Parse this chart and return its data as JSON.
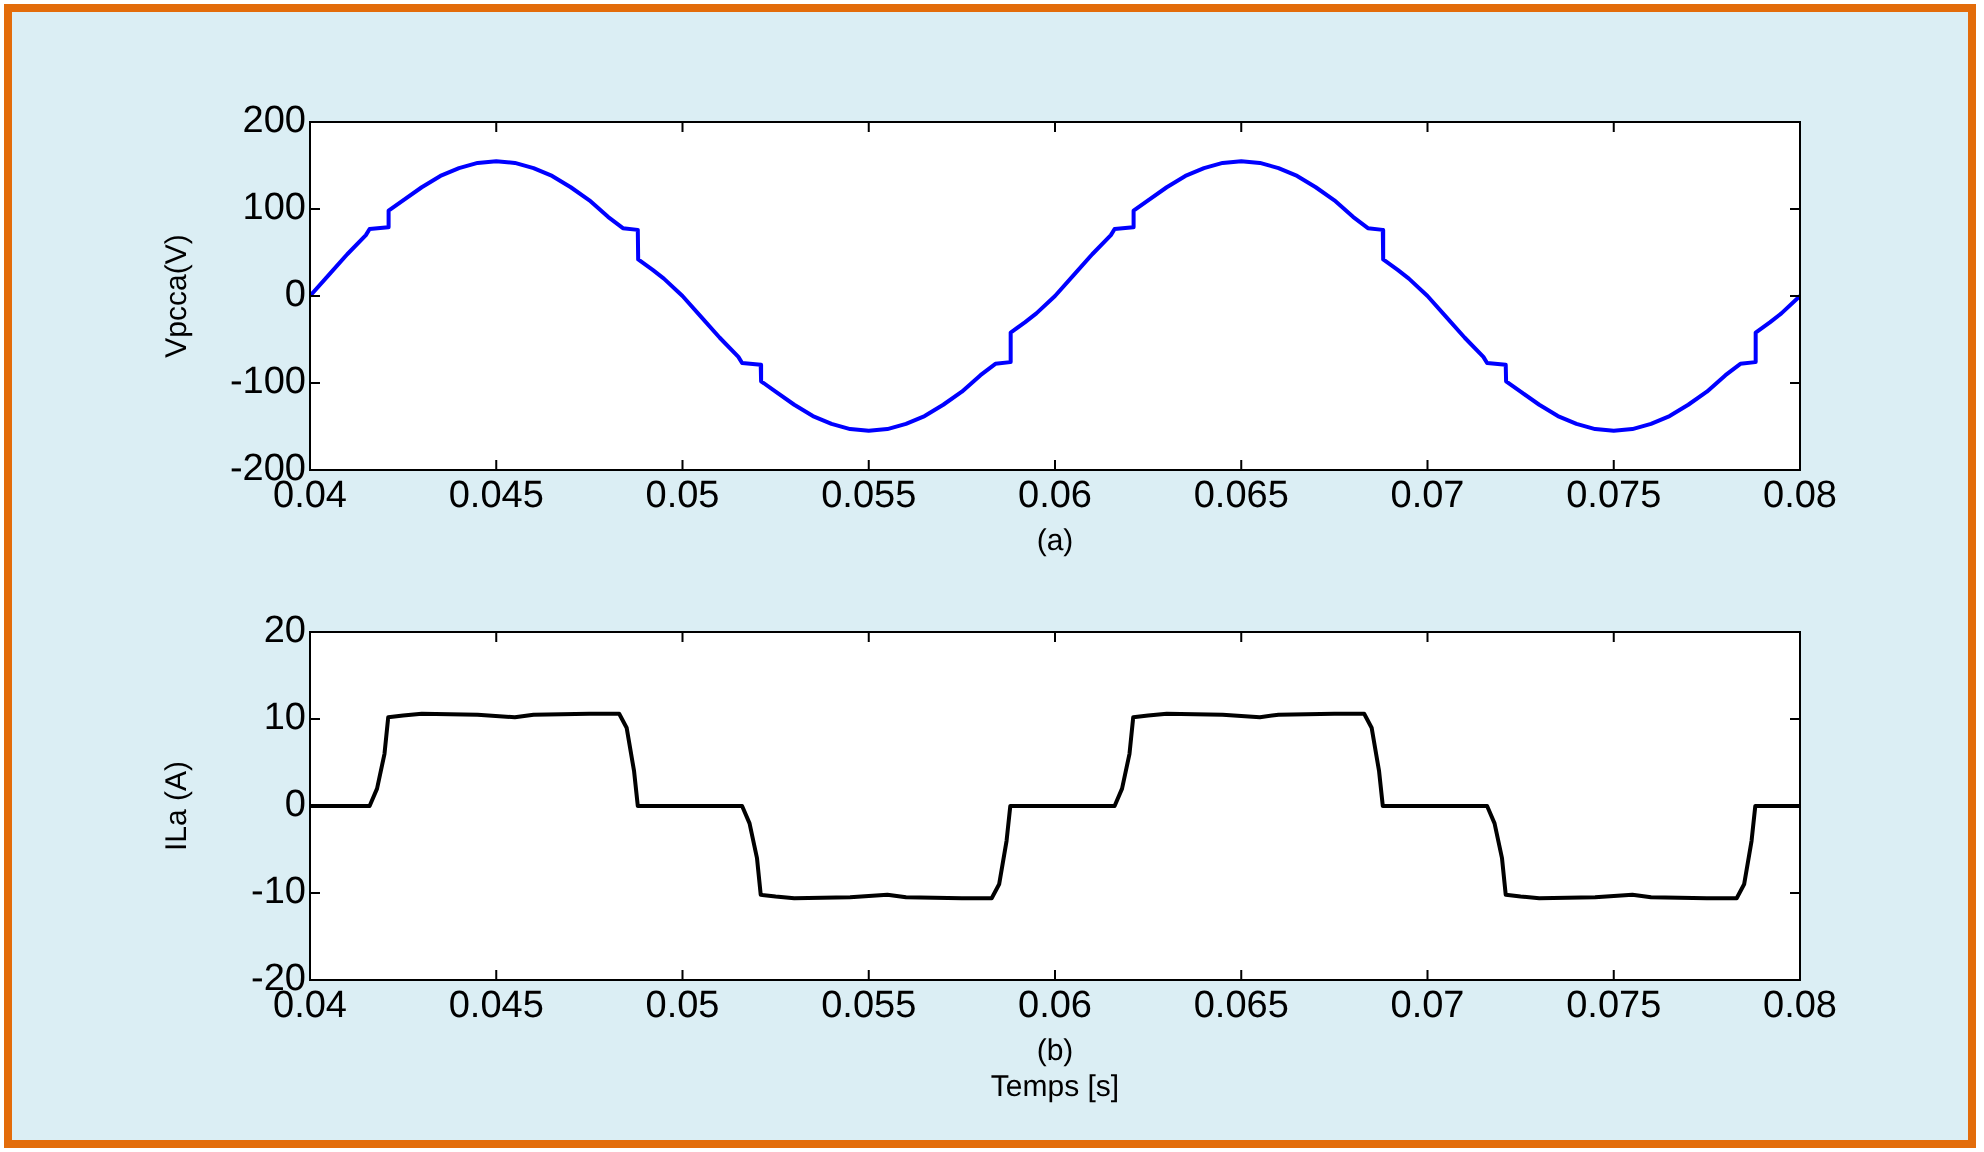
{
  "chart_data": [
    {
      "type": "line",
      "xlabel": "(a)",
      "ylabel": "Vpcca(V)",
      "xlim": [
        0.04,
        0.08
      ],
      "xticks": [
        0.04,
        0.045,
        0.05,
        0.055,
        0.06,
        0.065,
        0.07,
        0.075,
        0.08
      ],
      "ylim": [
        -200,
        200
      ],
      "yticks": [
        -200,
        -100,
        0,
        100,
        200
      ],
      "grid": false,
      "legend": false,
      "x": [
        0.04,
        0.0405,
        0.041,
        0.0415,
        0.0416,
        0.0421,
        0.04211,
        0.0425,
        0.043,
        0.0435,
        0.044,
        0.0445,
        0.045,
        0.0455,
        0.046,
        0.0465,
        0.047,
        0.0475,
        0.048,
        0.0484,
        0.0488,
        0.04881,
        0.0492,
        0.0495,
        0.05,
        0.0505,
        0.051,
        0.0515,
        0.0516,
        0.0521,
        0.05211,
        0.0525,
        0.053,
        0.0535,
        0.054,
        0.0545,
        0.055,
        0.0555,
        0.056,
        0.0565,
        0.057,
        0.0575,
        0.058,
        0.0584,
        0.0588,
        0.05881,
        0.0592,
        0.0595,
        0.06,
        0.0605,
        0.061,
        0.0615,
        0.0616,
        0.0621,
        0.06211,
        0.0625,
        0.063,
        0.0635,
        0.064,
        0.0645,
        0.065,
        0.0655,
        0.066,
        0.0665,
        0.067,
        0.0675,
        0.068,
        0.0684,
        0.0688,
        0.06881,
        0.0692,
        0.0695,
        0.07,
        0.0705,
        0.071,
        0.0715,
        0.0716,
        0.0721,
        0.07211,
        0.0725,
        0.073,
        0.0735,
        0.074,
        0.0745,
        0.075,
        0.0755,
        0.076,
        0.0765,
        0.077,
        0.0775,
        0.078,
        0.0784,
        0.0788,
        0.07881,
        0.0792,
        0.0795,
        0.08
      ],
      "series": [
        {
          "color": "#0000ff",
          "values": [
            0,
            24,
            48,
            70,
            77,
            79,
            98,
            110,
            125,
            138,
            147,
            153,
            155,
            153,
            147,
            138,
            125,
            110,
            91,
            78,
            76,
            42,
            30,
            20,
            0,
            -24,
            -48,
            -70,
            -77,
            -79,
            -98,
            -110,
            -125,
            -138,
            -147,
            -153,
            -155,
            -153,
            -147,
            -138,
            -125,
            -110,
            -91,
            -78,
            -76,
            -42,
            -30,
            -20,
            0,
            24,
            48,
            70,
            77,
            79,
            98,
            110,
            125,
            138,
            147,
            153,
            155,
            153,
            147,
            138,
            125,
            110,
            91,
            78,
            76,
            42,
            30,
            20,
            0,
            -24,
            -48,
            -70,
            -77,
            -79,
            -98,
            -110,
            -125,
            -138,
            -147,
            -153,
            -155,
            -153,
            -147,
            -138,
            -125,
            -110,
            -91,
            -78,
            -76,
            -42,
            -30,
            -20,
            0
          ]
        }
      ]
    },
    {
      "type": "line",
      "xlabel": "Temps [s]",
      "ylabel": "ILa (A)",
      "annotations": [
        "(b)"
      ],
      "xlim": [
        0.04,
        0.08
      ],
      "xticks": [
        0.04,
        0.045,
        0.05,
        0.055,
        0.06,
        0.065,
        0.07,
        0.075,
        0.08
      ],
      "ylim": [
        -20,
        20
      ],
      "yticks": [
        -20,
        -10,
        0,
        10,
        20
      ],
      "grid": false,
      "legend": false,
      "x": [
        0.04,
        0.0416,
        0.0418,
        0.042,
        0.0421,
        0.0425,
        0.043,
        0.0445,
        0.0455,
        0.046,
        0.0475,
        0.0483,
        0.0485,
        0.0487,
        0.0488,
        0.05,
        0.0516,
        0.0518,
        0.052,
        0.0521,
        0.0525,
        0.053,
        0.0545,
        0.0555,
        0.056,
        0.0575,
        0.0583,
        0.0585,
        0.0587,
        0.0588,
        0.06,
        0.0616,
        0.0618,
        0.062,
        0.0621,
        0.0625,
        0.063,
        0.0645,
        0.0655,
        0.066,
        0.0675,
        0.0683,
        0.0685,
        0.0687,
        0.0688,
        0.07,
        0.0716,
        0.0718,
        0.072,
        0.0721,
        0.0725,
        0.073,
        0.0745,
        0.0755,
        0.076,
        0.0775,
        0.0783,
        0.0785,
        0.0787,
        0.0788,
        0.08
      ],
      "series": [
        {
          "color": "#000000",
          "values": [
            0,
            0,
            2,
            6,
            10.2,
            10.4,
            10.6,
            10.5,
            10.2,
            10.5,
            10.6,
            10.6,
            9,
            4,
            0,
            0,
            0,
            -2,
            -6,
            -10.2,
            -10.4,
            -10.6,
            -10.5,
            -10.2,
            -10.5,
            -10.6,
            -10.6,
            -9,
            -4,
            0,
            0,
            0,
            2,
            6,
            10.2,
            10.4,
            10.6,
            10.5,
            10.2,
            10.5,
            10.6,
            10.6,
            9,
            4,
            0,
            0,
            0,
            -2,
            -6,
            -10.2,
            -10.4,
            -10.6,
            -10.5,
            -10.2,
            -10.5,
            -10.6,
            -10.6,
            -9,
            -4,
            0,
            0
          ]
        }
      ]
    }
  ]
}
